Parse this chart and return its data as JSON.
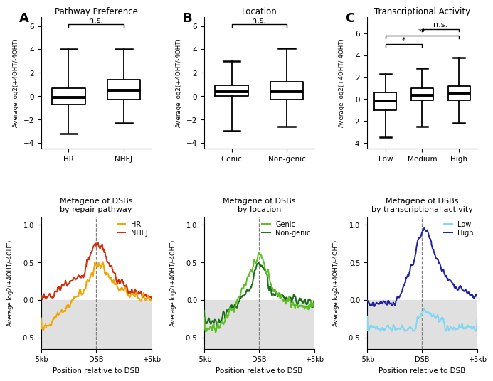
{
  "panel_A": {
    "title": "Pathway Preference",
    "label": "A",
    "categories": [
      "HR",
      "NHEJ"
    ],
    "boxes": [
      {
        "median": -0.1,
        "q1": -0.7,
        "q3": 0.7,
        "whislo": -3.2,
        "whishi": 4.0
      },
      {
        "median": 0.5,
        "q1": -0.3,
        "q3": 1.4,
        "whislo": -2.3,
        "whishi": 4.0
      }
    ],
    "sig_pairs": [
      [
        "HR",
        "NHEJ",
        "n.s."
      ]
    ],
    "ylim": [
      -4.5,
      6.8
    ],
    "yticks": [
      -4,
      -2,
      0,
      2,
      4,
      6
    ],
    "ylabel": "Average log2(+4OHT/-4OHT)"
  },
  "panel_B": {
    "title": "Location",
    "label": "B",
    "categories": [
      "Genic",
      "Non-genic"
    ],
    "boxes": [
      {
        "median": 0.4,
        "q1": 0.0,
        "q3": 0.9,
        "whislo": -3.0,
        "whishi": 3.0
      },
      {
        "median": 0.4,
        "q1": -0.3,
        "q3": 1.2,
        "whislo": -2.6,
        "whishi": 4.1
      }
    ],
    "sig_pairs": [
      [
        "Genic",
        "Non-genic",
        "n.s."
      ]
    ],
    "ylim": [
      -4.5,
      6.8
    ],
    "yticks": [
      -4,
      -2,
      0,
      2,
      4,
      6
    ],
    "ylabel": "Average log2(+4OHT/-4OHT)"
  },
  "panel_C": {
    "title": "Transcriptional Activity",
    "label": "C",
    "categories": [
      "Low",
      "Medium",
      "High"
    ],
    "boxes": [
      {
        "median": -0.2,
        "q1": -1.0,
        "q3": 0.6,
        "whislo": -3.5,
        "whishi": 2.3
      },
      {
        "median": 0.35,
        "q1": -0.1,
        "q3": 1.0,
        "whislo": -2.5,
        "whishi": 2.8
      },
      {
        "median": 0.55,
        "q1": -0.1,
        "q3": 1.2,
        "whislo": -2.2,
        "whishi": 3.8
      }
    ],
    "sig_pairs": [
      [
        0,
        1,
        "*"
      ],
      [
        0,
        2,
        "**"
      ],
      [
        1,
        2,
        "n.s."
      ]
    ],
    "sig_levels": [
      5.0,
      5.8,
      6.4
    ],
    "ylim": [
      -4.5,
      7.5
    ],
    "yticks": [
      -4,
      -2,
      0,
      2,
      4,
      6
    ],
    "ylabel": "Average log2(+4OHT/-4OHT)"
  },
  "panel_D": {
    "title": "Metagene of DSBs\nby repair pathway",
    "xlabel": "Position relative to DSB",
    "ylabel": "Average log2(+4OHT/-4OHT)",
    "xlim": [
      -5000,
      5000
    ],
    "ylim": [
      -0.65,
      1.1
    ],
    "yticks": [
      -0.5,
      0.0,
      0.5,
      1.0
    ],
    "xtick_labels": [
      "-5kb",
      "DSB",
      "+5kb"
    ],
    "xtick_vals": [
      -5000,
      0,
      5000
    ],
    "series": [
      "NHEJ",
      "HR"
    ],
    "colors": [
      "#d42b0a",
      "#f0a500"
    ],
    "bg_color": "#e8e8e8",
    "legend_loc": "upper right"
  },
  "panel_E": {
    "title": "Metagene of DSBs\nby location",
    "xlabel": "Position relative to DSB",
    "ylabel": "Average log2(+4OHT/-4OHT)",
    "xlim": [
      -5000,
      5000
    ],
    "ylim": [
      -0.65,
      1.1
    ],
    "yticks": [
      -0.5,
      0.0,
      0.5,
      1.0
    ],
    "xtick_labels": [
      "-5kb",
      "DSB",
      "+5kb"
    ],
    "xtick_vals": [
      -5000,
      0,
      5000
    ],
    "series": [
      "Non-genic",
      "Genic"
    ],
    "colors": [
      "#1a6e1a",
      "#5abf20"
    ],
    "bg_color": "#e8e8e8",
    "legend_loc": "upper right"
  },
  "panel_F": {
    "title": "Metagene of DSBs\nby transcriptional activity",
    "xlabel": "Position relative to DSB",
    "ylabel": "Average log2(+4OHT/-4OHT)",
    "xlim": [
      -5000,
      5000
    ],
    "ylim": [
      -0.65,
      1.1
    ],
    "yticks": [
      -0.5,
      0.0,
      0.5,
      1.0
    ],
    "xtick_labels": [
      "-5kb",
      "DSB",
      "+5kb"
    ],
    "xtick_vals": [
      -5000,
      0,
      5000
    ],
    "series": [
      "High",
      "Low"
    ],
    "colors": [
      "#2020a0",
      "#80d8f0"
    ],
    "bg_color": "#e8e8e8",
    "legend_loc": "upper right"
  }
}
